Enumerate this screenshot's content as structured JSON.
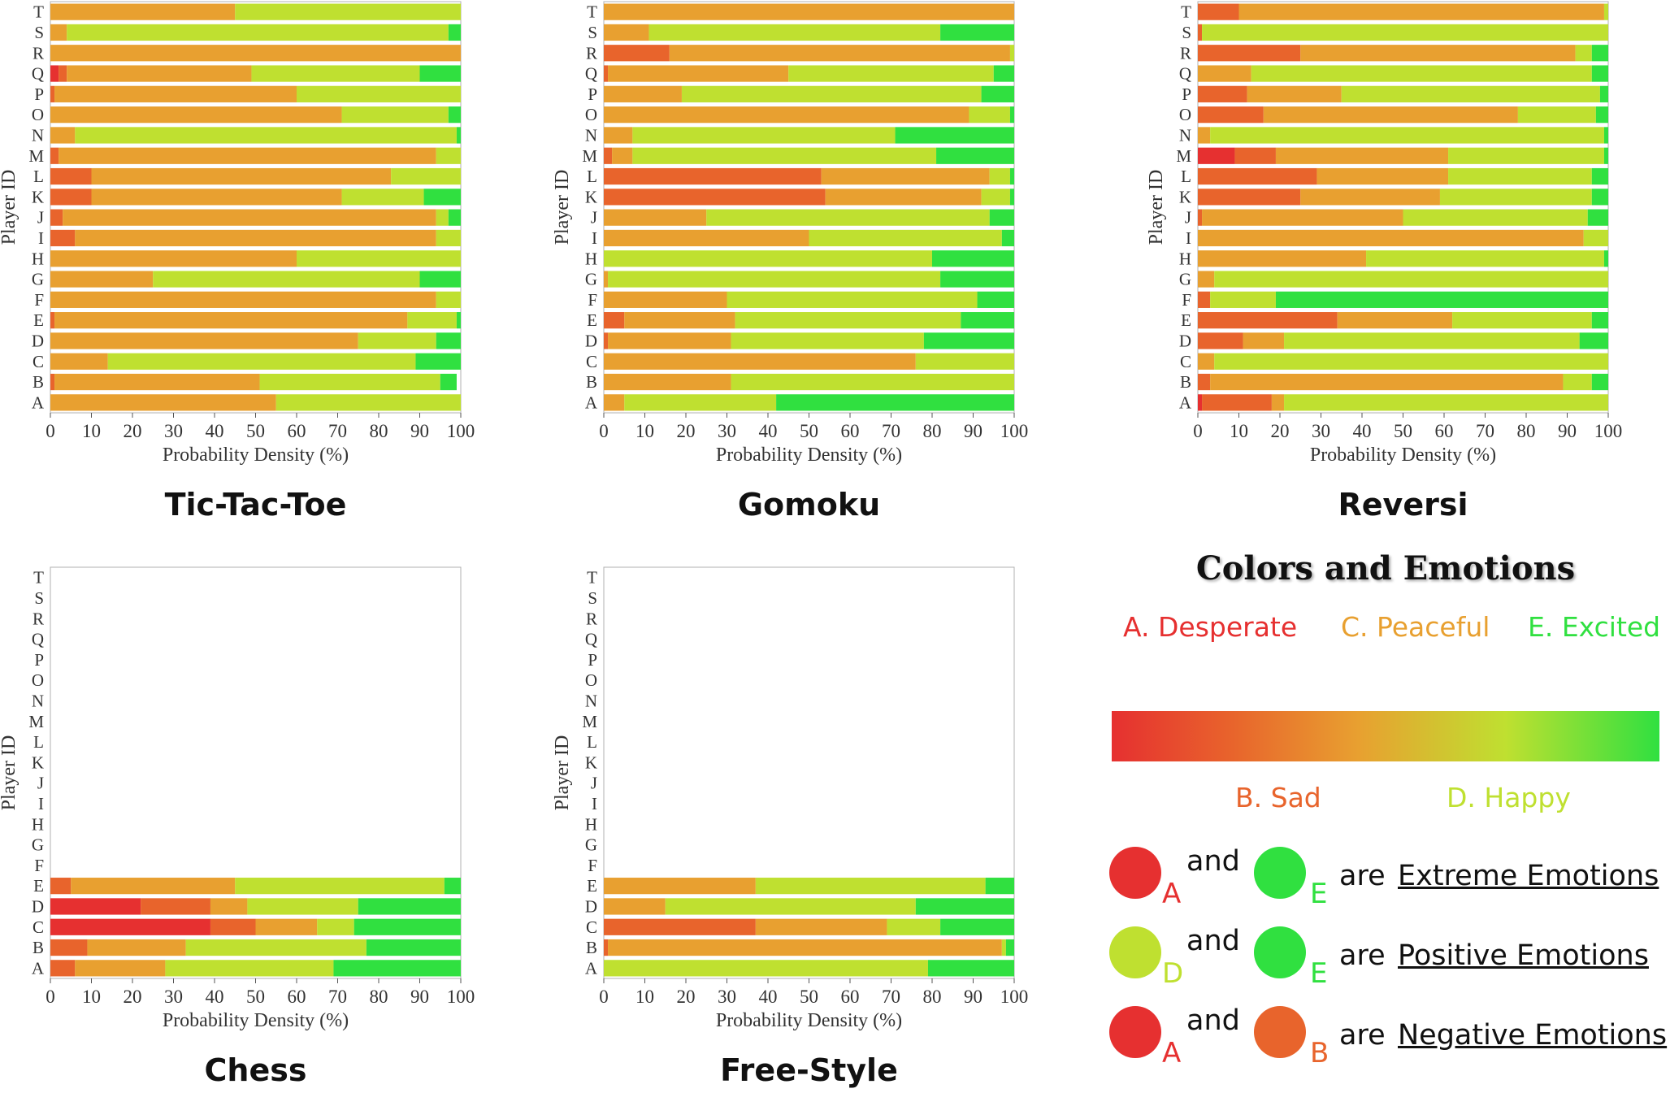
{
  "colors": {
    "desperate": "#e63030",
    "sad": "#e8642c",
    "peaceful": "#e8a030",
    "happy": "#bfe030",
    "excited": "#30e040"
  },
  "common": {
    "players": [
      "A",
      "B",
      "C",
      "D",
      "E",
      "F",
      "G",
      "H",
      "I",
      "J",
      "K",
      "L",
      "M",
      "N",
      "O",
      "P",
      "Q",
      "R",
      "S",
      "T"
    ],
    "ylabel": "Player ID",
    "xlabel": "Probability Density (%)",
    "xticks": [
      "0",
      "10",
      "20",
      "30",
      "40",
      "50",
      "60",
      "70",
      "80",
      "90",
      "100"
    ]
  },
  "chart_data": [
    {
      "type": "bar",
      "stacked": "horizontal",
      "title": "Tic-Tac-Toe",
      "xlim": [
        0,
        100
      ],
      "rows": [
        [
          0,
          0,
          55,
          45,
          0
        ],
        [
          0,
          1,
          50,
          44,
          4
        ],
        [
          0,
          0,
          14,
          75,
          11
        ],
        [
          0,
          0,
          75,
          19,
          6
        ],
        [
          0,
          1,
          86,
          12,
          1
        ],
        [
          0,
          0,
          94,
          6,
          0
        ],
        [
          0,
          0,
          25,
          65,
          10
        ],
        [
          0,
          0,
          60,
          40,
          0
        ],
        [
          0,
          6,
          88,
          6,
          0
        ],
        [
          0,
          3,
          91,
          3,
          3
        ],
        [
          0,
          10,
          61,
          20,
          9
        ],
        [
          0,
          10,
          73,
          17,
          0
        ],
        [
          0,
          2,
          92,
          6,
          0
        ],
        [
          0,
          0,
          6,
          93,
          1
        ],
        [
          0,
          0,
          71,
          26,
          3
        ],
        [
          0,
          1,
          59,
          40,
          0
        ],
        [
          2,
          2,
          45,
          41,
          10
        ],
        [
          0,
          0,
          100,
          0,
          0
        ],
        [
          0,
          0,
          4,
          93,
          3
        ],
        [
          0,
          0,
          45,
          55,
          0
        ]
      ]
    },
    {
      "type": "bar",
      "stacked": "horizontal",
      "title": "Gomoku",
      "xlim": [
        0,
        100
      ],
      "rows": [
        [
          0,
          0,
          5,
          37,
          58
        ],
        [
          0,
          0,
          31,
          69,
          0
        ],
        [
          0,
          0,
          76,
          24,
          0
        ],
        [
          0,
          1,
          30,
          47,
          22
        ],
        [
          0,
          5,
          27,
          55,
          13
        ],
        [
          0,
          0,
          30,
          61,
          9
        ],
        [
          0,
          0,
          1,
          81,
          18
        ],
        [
          0,
          0,
          0,
          80,
          20
        ],
        [
          0,
          0,
          50,
          47,
          3
        ],
        [
          0,
          0,
          25,
          69,
          6
        ],
        [
          0,
          54,
          38,
          7,
          1
        ],
        [
          0,
          53,
          41,
          5,
          1
        ],
        [
          0,
          2,
          5,
          74,
          19
        ],
        [
          0,
          0,
          7,
          64,
          29
        ],
        [
          0,
          0,
          89,
          10,
          1
        ],
        [
          0,
          0,
          19,
          73,
          8
        ],
        [
          0,
          1,
          44,
          50,
          5
        ],
        [
          0,
          16,
          83,
          1,
          0
        ],
        [
          0,
          0,
          11,
          71,
          18
        ],
        [
          0,
          0,
          100,
          0,
          0
        ]
      ]
    },
    {
      "type": "bar",
      "stacked": "horizontal",
      "title": "Reversi",
      "xlim": [
        0,
        100
      ],
      "rows": [
        [
          1,
          17,
          3,
          79,
          0
        ],
        [
          0,
          3,
          86,
          7,
          4
        ],
        [
          0,
          0,
          4,
          96,
          0
        ],
        [
          0,
          11,
          10,
          72,
          7
        ],
        [
          0,
          34,
          28,
          34,
          4
        ],
        [
          0,
          3,
          0,
          16,
          81
        ],
        [
          0,
          0,
          4,
          96,
          0
        ],
        [
          0,
          0,
          41,
          58,
          1
        ],
        [
          0,
          0,
          94,
          6,
          0
        ],
        [
          0,
          1,
          49,
          45,
          5
        ],
        [
          0,
          25,
          34,
          37,
          4
        ],
        [
          0,
          29,
          32,
          35,
          4
        ],
        [
          9,
          10,
          42,
          38,
          1
        ],
        [
          0,
          0,
          3,
          96,
          1
        ],
        [
          0,
          16,
          62,
          19,
          3
        ],
        [
          0,
          12,
          23,
          63,
          2
        ],
        [
          0,
          0,
          13,
          83,
          4
        ],
        [
          0,
          25,
          67,
          4,
          4
        ],
        [
          0,
          1,
          0,
          99,
          0
        ],
        [
          0,
          10,
          89,
          1,
          0
        ]
      ]
    },
    {
      "type": "bar",
      "stacked": "horizontal",
      "title": "Chess",
      "xlim": [
        0,
        100
      ],
      "rows": [
        [
          0,
          6,
          22,
          41,
          31
        ],
        [
          0,
          9,
          24,
          44,
          23
        ],
        [
          39,
          11,
          15,
          9,
          26
        ],
        [
          22,
          17,
          9,
          27,
          25
        ],
        [
          0,
          5,
          40,
          51,
          4
        ],
        [
          0,
          0,
          0,
          0,
          0
        ],
        [
          0,
          0,
          0,
          0,
          0
        ],
        [
          0,
          0,
          0,
          0,
          0
        ],
        [
          0,
          0,
          0,
          0,
          0
        ],
        [
          0,
          0,
          0,
          0,
          0
        ],
        [
          0,
          0,
          0,
          0,
          0
        ],
        [
          0,
          0,
          0,
          0,
          0
        ],
        [
          0,
          0,
          0,
          0,
          0
        ],
        [
          0,
          0,
          0,
          0,
          0
        ],
        [
          0,
          0,
          0,
          0,
          0
        ],
        [
          0,
          0,
          0,
          0,
          0
        ],
        [
          0,
          0,
          0,
          0,
          0
        ],
        [
          0,
          0,
          0,
          0,
          0
        ],
        [
          0,
          0,
          0,
          0,
          0
        ],
        [
          0,
          0,
          0,
          0,
          0
        ]
      ]
    },
    {
      "type": "bar",
      "stacked": "horizontal",
      "title": "Free-Style",
      "xlim": [
        0,
        100
      ],
      "rows": [
        [
          0,
          0,
          0,
          79,
          21
        ],
        [
          0,
          1,
          96,
          1,
          2
        ],
        [
          0,
          37,
          32,
          13,
          18
        ],
        [
          0,
          0,
          15,
          61,
          24
        ],
        [
          0,
          0,
          37,
          56,
          7
        ],
        [
          0,
          0,
          0,
          0,
          0
        ],
        [
          0,
          0,
          0,
          0,
          0
        ],
        [
          0,
          0,
          0,
          0,
          0
        ],
        [
          0,
          0,
          0,
          0,
          0
        ],
        [
          0,
          0,
          0,
          0,
          0
        ],
        [
          0,
          0,
          0,
          0,
          0
        ],
        [
          0,
          0,
          0,
          0,
          0
        ],
        [
          0,
          0,
          0,
          0,
          0
        ],
        [
          0,
          0,
          0,
          0,
          0
        ],
        [
          0,
          0,
          0,
          0,
          0
        ],
        [
          0,
          0,
          0,
          0,
          0
        ],
        [
          0,
          0,
          0,
          0,
          0
        ],
        [
          0,
          0,
          0,
          0,
          0
        ],
        [
          0,
          0,
          0,
          0,
          0
        ],
        [
          0,
          0,
          0,
          0,
          0
        ]
      ]
    }
  ],
  "legend": {
    "title": "Colors and Emotions",
    "emotions": {
      "a": "A. Desperate",
      "b": "B. Sad",
      "c": "C. Peaceful",
      "d": "D. Happy",
      "e": "E. Excited"
    },
    "rows": [
      {
        "l1": "A",
        "l2": "E",
        "and": "and",
        "are": "are",
        "category": "Extreme Emotions"
      },
      {
        "l1": "D",
        "l2": "E",
        "and": "and",
        "are": "are",
        "category": "Positive Emotions"
      },
      {
        "l1": "A",
        "l2": "B",
        "and": "and",
        "are": "are",
        "category": "Negative Emotions"
      }
    ]
  }
}
